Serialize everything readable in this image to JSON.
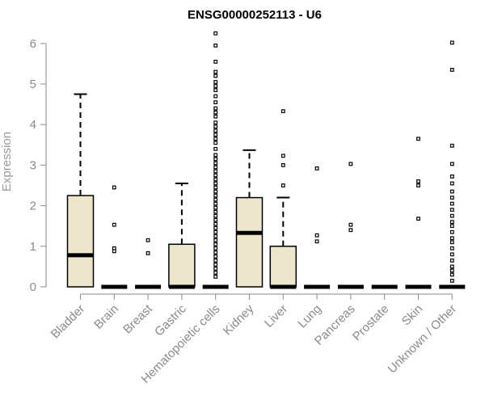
{
  "chart_data": {
    "type": "box",
    "title": "ENSG00000252113 - U6",
    "xlabel": "",
    "ylabel": "Expression",
    "ylim": [
      0,
      6.25
    ],
    "yticks": [
      0,
      1,
      2,
      3,
      4,
      5,
      6
    ],
    "colors": {
      "box_fill": "#ede6cc",
      "stroke": "#000000",
      "axis": "#8a8a8a"
    },
    "categories": [
      "Bladder",
      "Brain",
      "Breast",
      "Gastric",
      "Hematopoietic cells",
      "Kidney",
      "Liver",
      "Lung",
      "Pancreas",
      "Prostate",
      "Skin",
      "Unknown / Other"
    ],
    "boxes": [
      {
        "category": "Bladder",
        "whisker_low": 0,
        "q1": 0,
        "median": 0.78,
        "q3": 2.25,
        "whisker_high": 4.75,
        "outliers": []
      },
      {
        "category": "Brain",
        "whisker_low": 0,
        "q1": 0,
        "median": 0,
        "q3": 0,
        "whisker_high": 0,
        "outliers": [
          2.45,
          1.53,
          0.95,
          0.88
        ]
      },
      {
        "category": "Breast",
        "whisker_low": 0,
        "q1": 0,
        "median": 0,
        "q3": 0,
        "whisker_high": 0,
        "outliers": [
          1.15,
          0.83
        ]
      },
      {
        "category": "Gastric",
        "whisker_low": 0,
        "q1": 0,
        "median": 0,
        "q3": 1.05,
        "whisker_high": 2.55,
        "outliers": []
      },
      {
        "category": "Hematopoietic cells",
        "whisker_low": 0,
        "q1": 0,
        "median": 0,
        "q3": 0,
        "whisker_high": 0,
        "outliers": [
          6.25,
          5.95,
          5.55,
          5.3,
          5.2,
          5.05,
          4.95,
          4.85,
          4.7,
          4.55,
          4.4,
          4.3,
          4.2,
          4.05,
          3.95,
          3.85,
          3.75,
          3.65,
          3.55,
          3.4,
          3.25,
          3.15,
          3.05,
          2.95,
          2.85,
          2.75,
          2.65,
          2.55,
          2.45,
          2.35,
          2.25,
          2.15,
          2.05,
          1.95,
          1.85,
          1.75,
          1.65,
          1.55,
          1.45,
          1.35,
          1.25,
          1.15,
          1.05,
          0.95,
          0.85,
          0.75,
          0.65,
          0.55,
          0.45,
          0.35,
          0.25
        ]
      },
      {
        "category": "Kidney",
        "whisker_low": 0,
        "q1": 0,
        "median": 1.33,
        "q3": 2.2,
        "whisker_high": 3.37,
        "outliers": []
      },
      {
        "category": "Liver",
        "whisker_low": 0,
        "q1": 0,
        "median": 0,
        "q3": 1.0,
        "whisker_high": 2.2,
        "outliers": [
          4.33,
          3.23,
          3.0,
          2.5
        ]
      },
      {
        "category": "Lung",
        "whisker_low": 0,
        "q1": 0,
        "median": 0,
        "q3": 0,
        "whisker_high": 0,
        "outliers": [
          2.92,
          1.27,
          1.12
        ]
      },
      {
        "category": "Pancreas",
        "whisker_low": 0,
        "q1": 0,
        "median": 0,
        "q3": 0,
        "whisker_high": 0,
        "outliers": [
          3.03,
          1.53,
          1.4
        ]
      },
      {
        "category": "Prostate",
        "whisker_low": 0,
        "q1": 0,
        "median": 0,
        "q3": 0,
        "whisker_high": 0,
        "outliers": []
      },
      {
        "category": "Skin",
        "whisker_low": 0,
        "q1": 0,
        "median": 0,
        "q3": 0,
        "whisker_high": 0,
        "outliers": [
          3.65,
          2.6,
          2.5,
          1.68
        ]
      },
      {
        "category": "Unknown / Other",
        "whisker_low": 0,
        "q1": 0,
        "median": 0,
        "q3": 0,
        "whisker_high": 0,
        "outliers": [
          6.02,
          5.35,
          3.48,
          3.03,
          2.72,
          2.55,
          2.35,
          2.2,
          2.05,
          1.9,
          1.75,
          1.6,
          1.5,
          1.35,
          1.2,
          1.1,
          0.95,
          0.8,
          0.65,
          0.5,
          0.4,
          0.3,
          0.15
        ]
      }
    ]
  }
}
